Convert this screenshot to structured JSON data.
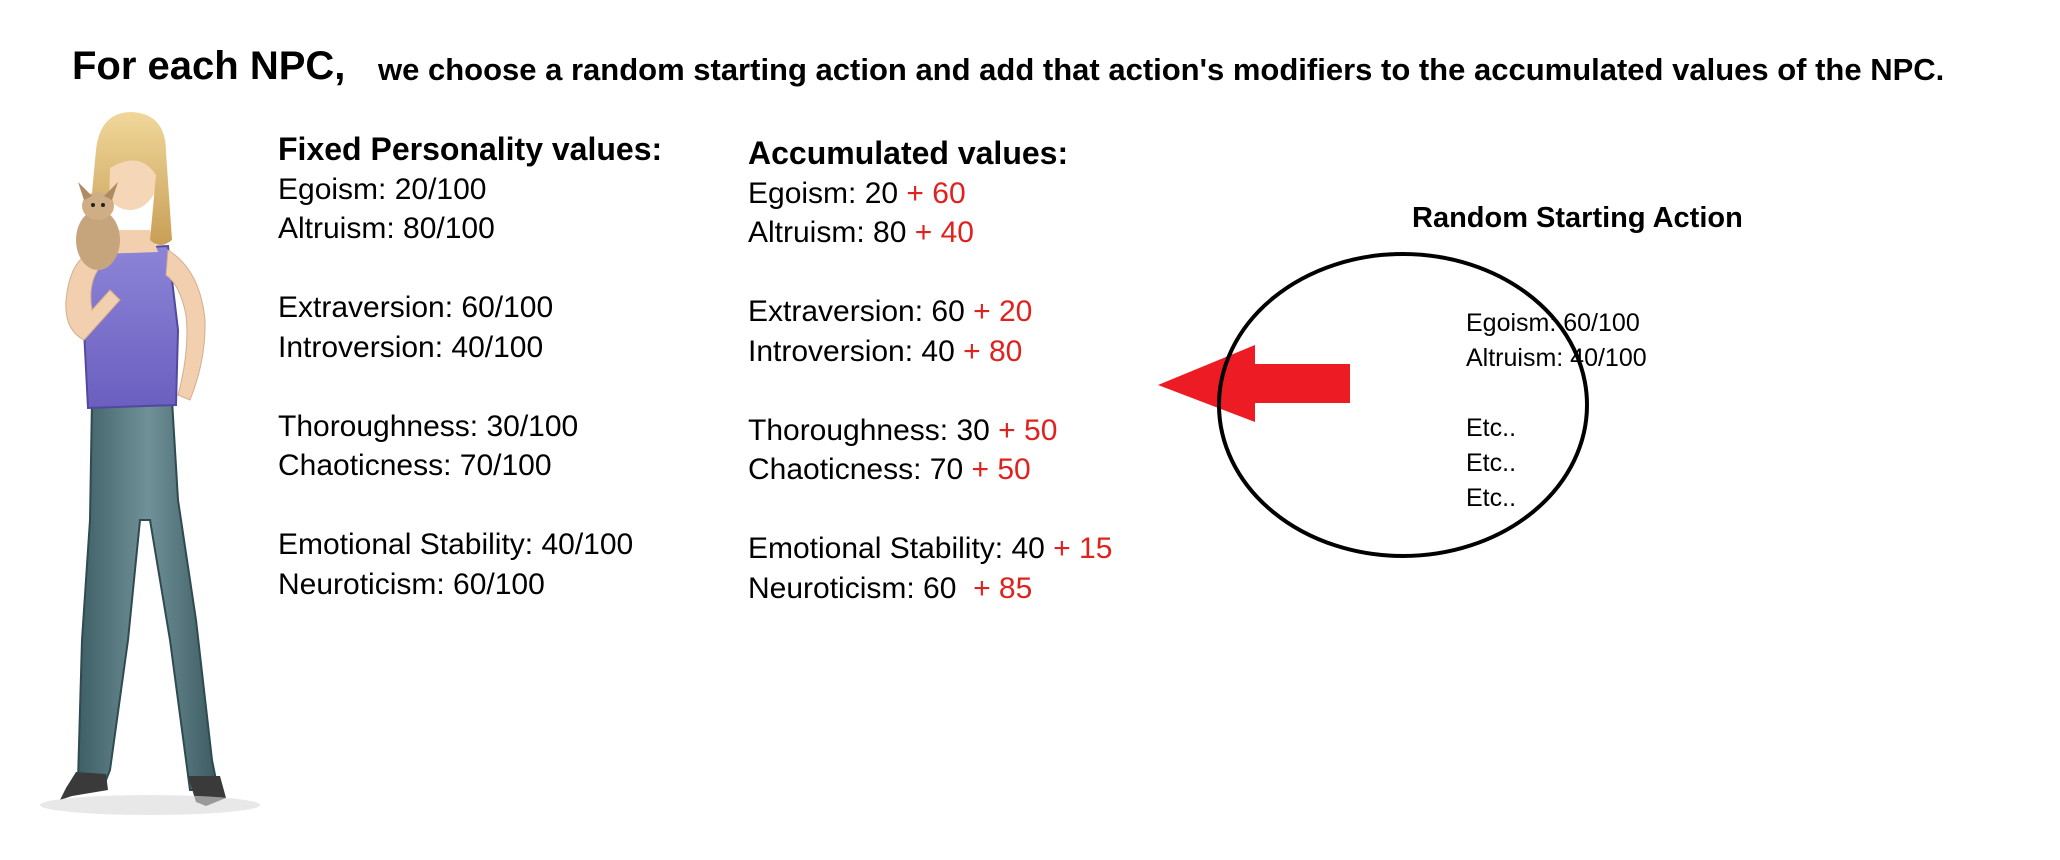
{
  "header": {
    "main": "For each NPC,",
    "sub": "we choose a random starting action and add that action's modifiers to the accumulated values of the NPC."
  },
  "fixed": {
    "title": "Fixed Personality values:",
    "lines": [
      "Egoism: 20/100",
      "Altruism: 80/100",
      "Extraversion: 60/100",
      "Introversion: 40/100",
      "Thoroughness: 30/100",
      "Chaoticness: 70/100",
      "Emotional Stability: 40/100",
      "Neuroticism: 60/100"
    ]
  },
  "accumulated": {
    "title": "Accumulated values:",
    "rows": [
      {
        "base": "Egoism: 20 ",
        "mod": "+ 60"
      },
      {
        "base": "Altruism: 80 ",
        "mod": "+ 40"
      },
      {
        "base": "Extraversion: 60 ",
        "mod": "+ 20"
      },
      {
        "base": "Introversion: 40 ",
        "mod": "+ 80"
      },
      {
        "base": "Thoroughness: 30 ",
        "mod": "+ 50"
      },
      {
        "base": "Chaoticness: 70 ",
        "mod": "+ 50"
      },
      {
        "base": "Emotional Stability: 40 ",
        "mod": "+ 15"
      },
      {
        "base": "Neuroticism: 60  ",
        "mod": "+ 85"
      }
    ]
  },
  "action": {
    "title": "Random Starting Action",
    "lines": [
      "Egoism: 60/100",
      "Altruism: 40/100",
      "Etc..",
      "Etc..",
      "Etc.."
    ]
  },
  "colors": {
    "modifier": "#e0221f",
    "arrow": "#ed1c24",
    "text": "#000000"
  },
  "icons": {
    "npc": "npc-woman-holding-dog-figure",
    "arrow": "left-arrow"
  }
}
